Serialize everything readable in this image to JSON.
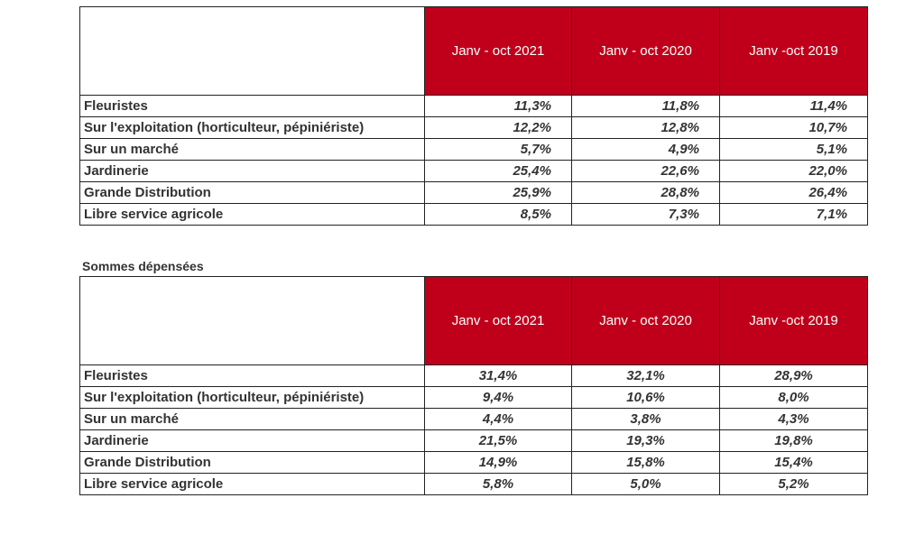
{
  "columns": [
    "Janv - oct 2021",
    "Janv - oct 2020",
    "Janv -oct 2019"
  ],
  "table1": {
    "rows": [
      {
        "label": "Fleuristes",
        "values": [
          "11,3%",
          "11,8%",
          "11,4%"
        ]
      },
      {
        "label": "Sur l'exploitation (horticulteur, pépiniériste)",
        "values": [
          "12,2%",
          "12,8%",
          "10,7%"
        ]
      },
      {
        "label": "Sur un marché",
        "values": [
          "5,7%",
          "4,9%",
          "5,1%"
        ]
      },
      {
        "label": "Jardinerie",
        "values": [
          "25,4%",
          "22,6%",
          "22,0%"
        ]
      },
      {
        "label": "Grande Distribution",
        "values": [
          "25,9%",
          "28,8%",
          "26,4%"
        ]
      },
      {
        "label": "Libre service agricole",
        "values": [
          "8,5%",
          "7,3%",
          "7,1%"
        ]
      }
    ]
  },
  "table2": {
    "caption": "Sommes dépensées",
    "rows": [
      {
        "label": "Fleuristes",
        "values": [
          "31,4%",
          "32,1%",
          "28,9%"
        ]
      },
      {
        "label": "Sur l'exploitation (horticulteur, pépiniériste)",
        "values": [
          "9,4%",
          "10,6%",
          "8,0%"
        ]
      },
      {
        "label": "Sur un marché",
        "values": [
          "4,4%",
          "3,8%",
          "4,3%"
        ]
      },
      {
        "label": "Jardinerie",
        "values": [
          "21,5%",
          "19,3%",
          "19,8%"
        ]
      },
      {
        "label": "Grande Distribution",
        "values": [
          "14,9%",
          "15,8%",
          "15,4%"
        ]
      },
      {
        "label": "Libre service agricole",
        "values": [
          "5,8%",
          "5,0%",
          "5,2%"
        ]
      }
    ]
  },
  "colors": {
    "header": "#c0001a"
  }
}
